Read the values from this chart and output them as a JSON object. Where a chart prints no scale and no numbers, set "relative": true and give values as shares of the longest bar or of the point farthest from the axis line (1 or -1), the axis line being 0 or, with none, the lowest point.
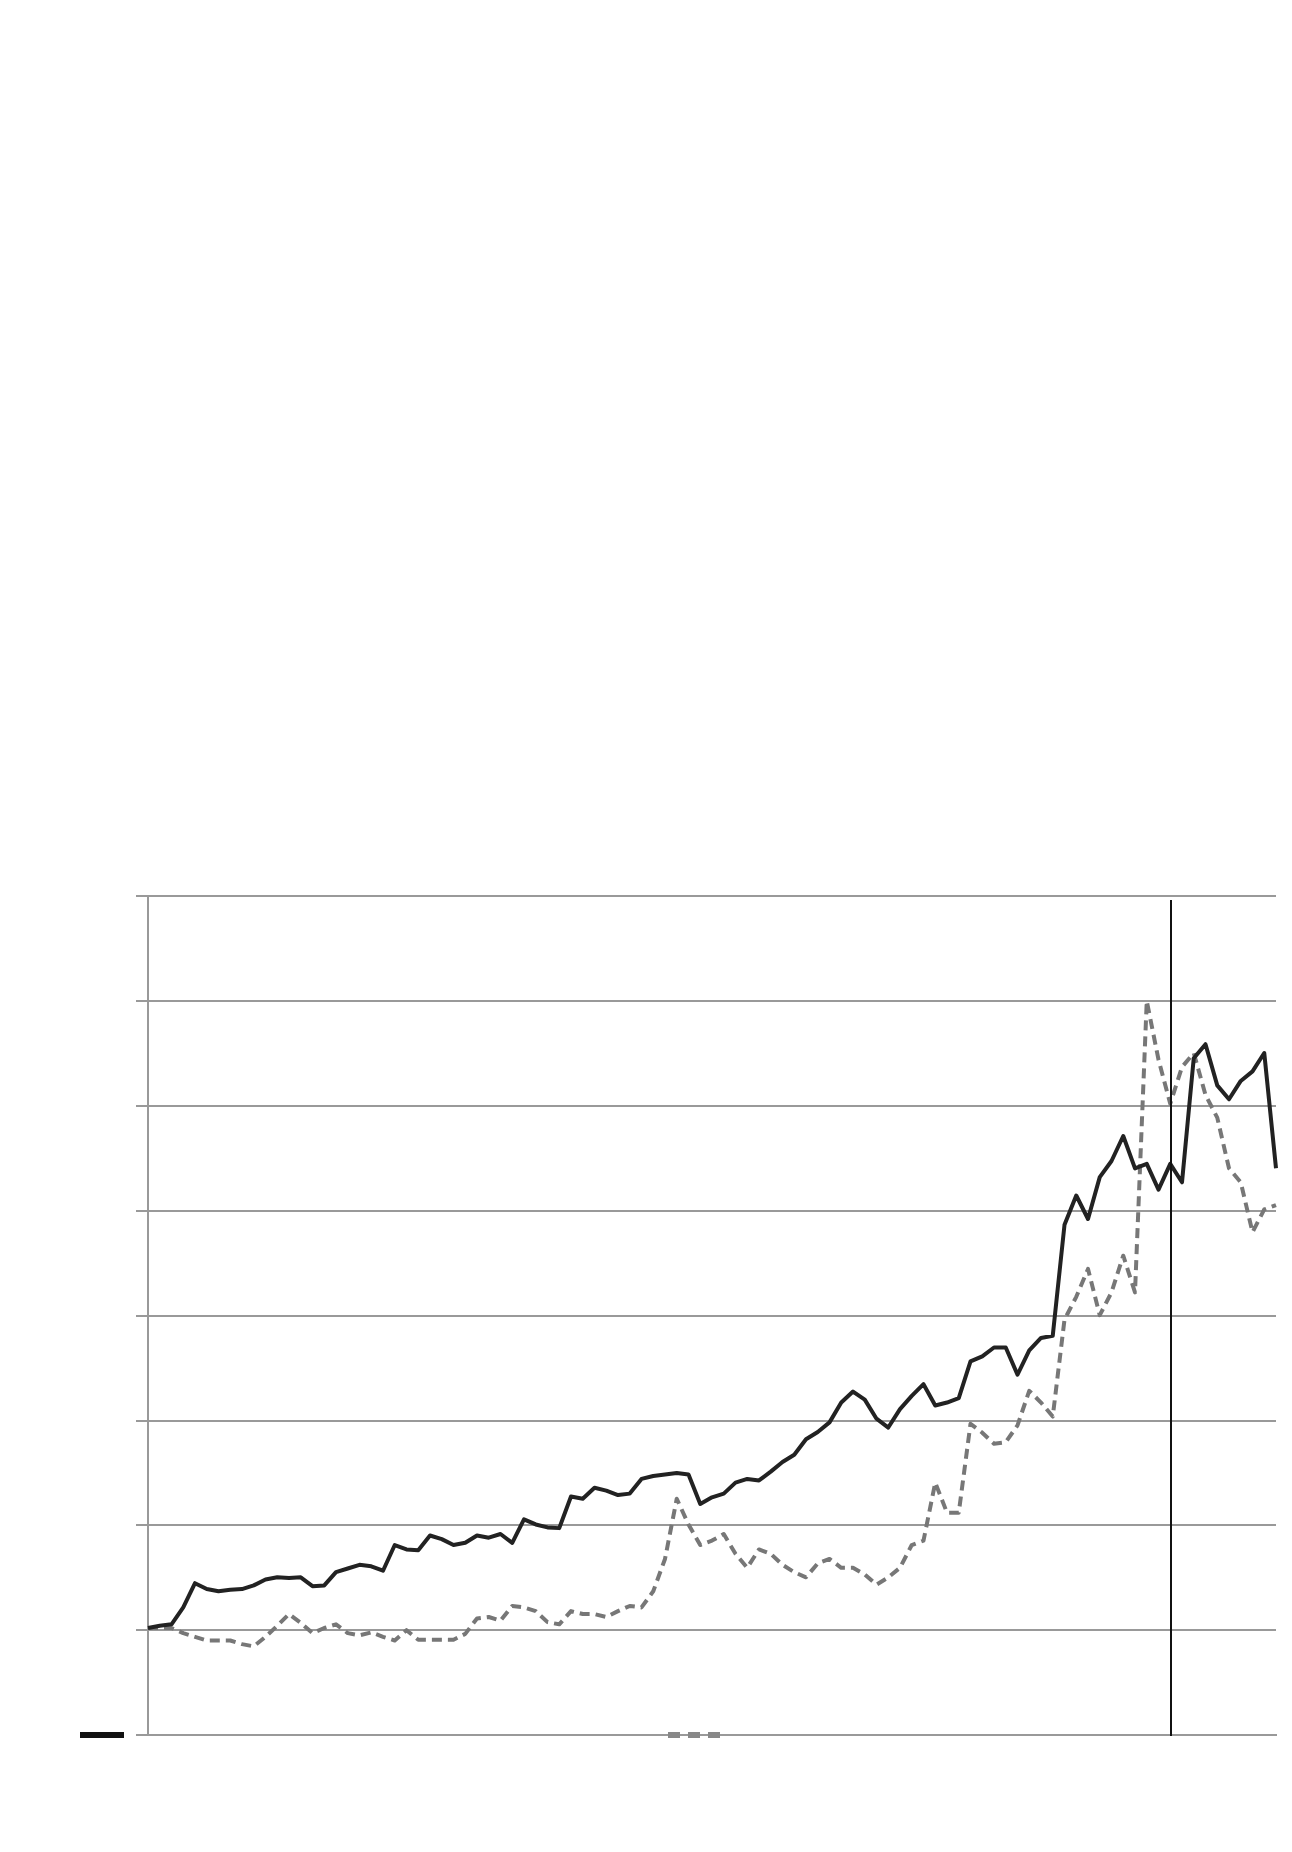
{
  "chart_data": {
    "type": "line",
    "relative": true,
    "grid": "y",
    "marker": "none",
    "categories": [
      null,
      null,
      null,
      null,
      null,
      null,
      null,
      null,
      null,
      null,
      null,
      null,
      null,
      null,
      null,
      null,
      null,
      null,
      null,
      null,
      null,
      null,
      null,
      null,
      null,
      null,
      null,
      null,
      null,
      null,
      null,
      null,
      null,
      null,
      null,
      null,
      null,
      null,
      null,
      null,
      null,
      null,
      null,
      null,
      null,
      null,
      null,
      null,
      null,
      null,
      null,
      null,
      null,
      null,
      null,
      null,
      null,
      null,
      null,
      null,
      null,
      null,
      null,
      null,
      null,
      null,
      null,
      null,
      null,
      null,
      null,
      null,
      null,
      null,
      null,
      null,
      null,
      null,
      null,
      null,
      null,
      null,
      null,
      null,
      null,
      null,
      null,
      null,
      null,
      null,
      null,
      null,
      null,
      null,
      null,
      null,
      null
    ],
    "series": [
      {
        "color": "#222222",
        "line_style": "solid",
        "values": [
          0.146,
          0.149,
          0.151,
          0.174,
          0.207,
          0.199,
          0.196,
          0.198,
          0.199,
          0.204,
          0.212,
          0.215,
          0.214,
          0.215,
          0.203,
          0.204,
          0.222,
          0.227,
          0.232,
          0.23,
          0.224,
          0.259,
          0.253,
          0.252,
          0.272,
          0.267,
          0.259,
          0.262,
          0.272,
          0.269,
          0.274,
          0.262,
          0.294,
          0.287,
          0.283,
          0.282,
          0.325,
          0.322,
          0.337,
          0.333,
          0.327,
          0.329,
          0.349,
          0.353,
          0.355,
          0.357,
          0.355,
          0.315,
          0.324,
          0.329,
          0.344,
          0.349,
          0.347,
          0.359,
          0.372,
          0.382,
          0.403,
          0.413,
          0.426,
          0.453,
          0.468,
          0.457,
          0.431,
          0.419,
          0.444,
          0.462,
          0.478,
          0.449,
          0.453,
          0.459,
          0.509,
          0.516,
          0.528,
          0.528,
          0.491,
          0.524,
          0.541,
          0.544,
          0.695,
          0.735,
          0.703,
          0.76,
          0.782,
          0.816,
          0.772,
          0.778,
          0.743,
          0.778,
          0.753,
          0.922,
          0.941,
          0.885,
          0.866,
          0.891,
          0.904,
          0.929,
          0.772
        ]
      },
      {
        "color": "#777777",
        "line_style": "dashed",
        "values": [
          0.146,
          0.146,
          0.146,
          0.139,
          0.134,
          0.129,
          0.129,
          0.129,
          0.124,
          0.121,
          0.134,
          0.149,
          0.165,
          0.153,
          0.139,
          0.146,
          0.151,
          0.139,
          0.136,
          0.14,
          0.134,
          0.129,
          0.143,
          0.13,
          0.13,
          0.13,
          0.13,
          0.138,
          0.159,
          0.161,
          0.156,
          0.176,
          0.174,
          0.169,
          0.154,
          0.151,
          0.169,
          0.165,
          0.165,
          0.161,
          0.169,
          0.176,
          0.174,
          0.196,
          0.24,
          0.322,
          0.287,
          0.259,
          0.265,
          0.274,
          0.247,
          0.228,
          0.253,
          0.247,
          0.232,
          0.222,
          0.215,
          0.234,
          0.24,
          0.228,
          0.228,
          0.219,
          0.205,
          0.215,
          0.228,
          0.259,
          0.265,
          0.344,
          0.303,
          0.303,
          0.424,
          0.412,
          0.397,
          0.399,
          0.422,
          0.469,
          0.453,
          0.434,
          0.566,
          0.597,
          0.635,
          0.572,
          0.603,
          0.653,
          0.603,
          1,
          0.92,
          0.86,
          0.91,
          0.929,
          0.872,
          0.841,
          0.772,
          0.753,
          0.685,
          0.716,
          0.722
        ]
      }
    ]
  }
}
